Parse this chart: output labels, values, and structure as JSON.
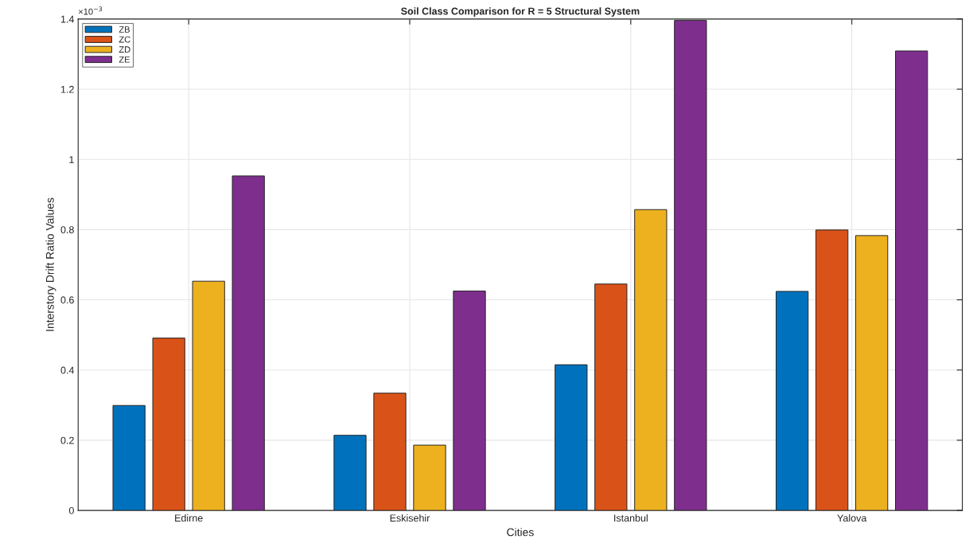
{
  "chart_data": {
    "type": "bar",
    "title": "Soil Class Comparison for R = 5 Structural System",
    "xlabel": "Cities",
    "ylabel": "Interstory Drift Ratio Values",
    "annotations": [
      "×10$^{−3}$"
    ],
    "categories": [
      "Edirne",
      "Eskisehir",
      "Istanbul",
      "Yalova"
    ],
    "series": [
      {
        "name": "ZB",
        "color": "#0072bd",
        "values": [
          0.299,
          0.214,
          0.415,
          0.624
        ]
      },
      {
        "name": "ZC",
        "color": "#d95319",
        "values": [
          0.491,
          0.334,
          0.645,
          0.799
        ]
      },
      {
        "name": "ZD",
        "color": "#edb120",
        "values": [
          0.653,
          0.186,
          0.857,
          0.783
        ]
      },
      {
        "name": "ZE",
        "color": "#7e2f8e",
        "values": [
          0.953,
          0.625,
          1.396,
          1.309
        ]
      }
    ],
    "ylim": [
      0,
      1.4
    ],
    "yticks": [
      0,
      0.2,
      0.4,
      0.6,
      0.8,
      1,
      1.2,
      1.4
    ],
    "grid": true,
    "legend": "top left"
  }
}
